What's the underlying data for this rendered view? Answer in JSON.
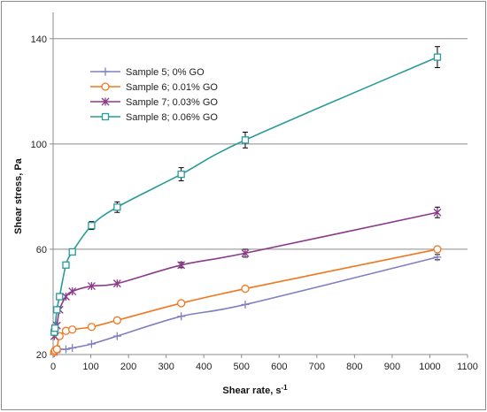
{
  "chart_data": {
    "type": "line",
    "title": "",
    "xlabel": "Shear rate, s",
    "xlabel_sup": "-1",
    "ylabel": "Shear stress, Pa",
    "xlim": [
      0,
      1100
    ],
    "ylim": [
      20,
      150
    ],
    "xticks": [
      0,
      100,
      200,
      300,
      400,
      500,
      600,
      700,
      800,
      900,
      1000,
      1100
    ],
    "yticks": [
      20,
      60,
      100,
      140
    ],
    "grid": "horizontal",
    "legend_position": "top-left",
    "series": [
      {
        "name": "Sample 5; 0% GO",
        "color": "#8080c0",
        "marker": "plus",
        "x": [
          3,
          5,
          10,
          17,
          34,
          51,
          102,
          170,
          340,
          510,
          1020
        ],
        "y": [
          20.5,
          21,
          21,
          22,
          22,
          22.5,
          24,
          27,
          34.5,
          39,
          57
        ],
        "err": [
          0,
          0,
          0,
          0,
          0,
          0,
          0,
          0,
          0,
          0,
          1
        ]
      },
      {
        "name": "Sample 6; 0.01% GO",
        "color": "#f07820",
        "marker": "circle",
        "x": [
          3,
          5,
          10,
          17,
          34,
          51,
          102,
          170,
          340,
          510,
          1020
        ],
        "y": [
          21,
          21.5,
          22,
          27,
          29,
          29.5,
          30.5,
          33,
          39.5,
          45,
          60
        ],
        "err": [
          0,
          0,
          0,
          0,
          0,
          0,
          0,
          0,
          0,
          0,
          1
        ]
      },
      {
        "name": "Sample 7; 0.03% GO",
        "color": "#8a3a8a",
        "marker": "asterisk",
        "x": [
          3,
          5,
          10,
          17,
          34,
          51,
          102,
          170,
          340,
          510,
          1020
        ],
        "y": [
          27,
          29,
          31,
          37,
          42,
          44,
          46,
          47,
          54,
          58.5,
          74
        ],
        "err": [
          0,
          0,
          0,
          0,
          0,
          0,
          0,
          0,
          1,
          1.5,
          2
        ]
      },
      {
        "name": "Sample 8; 0.06% GO",
        "color": "#2a9a9a",
        "marker": "square",
        "x": [
          3,
          5,
          10,
          17,
          34,
          51,
          102,
          170,
          340,
          510,
          1020
        ],
        "y": [
          28.5,
          30,
          37,
          42,
          54,
          59,
          69,
          76,
          88.5,
          101.5,
          133
        ],
        "err": [
          0,
          0,
          0,
          0,
          0,
          1,
          1.5,
          2,
          2.5,
          3,
          4
        ]
      }
    ]
  }
}
